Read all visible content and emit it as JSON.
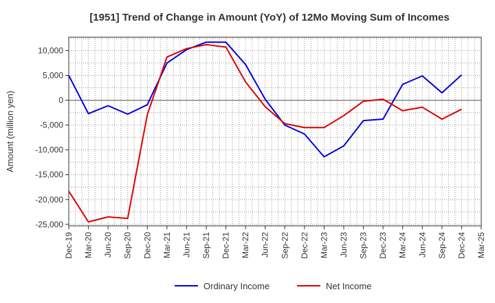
{
  "chart_data": {
    "type": "line",
    "title": "[1951]  Trend of Change in Amount (YoY) of 12Mo Moving Sum of Incomes",
    "xlabel": "",
    "ylabel": "Amount (million yen)",
    "categories": [
      "Dec-19",
      "Mar-20",
      "Jun-20",
      "Sep-20",
      "Dec-20",
      "Mar-21",
      "Jun-21",
      "Sep-21",
      "Dec-21",
      "Mar-22",
      "Jun-22",
      "Sep-22",
      "Dec-22",
      "Mar-23",
      "Jun-23",
      "Sep-23",
      "Dec-23",
      "Mar-24",
      "Jun-24",
      "Sep-24",
      "Dec-24",
      "Mar-25"
    ],
    "y_ticks": [
      10000,
      5000,
      0,
      -5000,
      -10000,
      -15000,
      -20000,
      -25000
    ],
    "y_tick_labels": [
      "10,000",
      "5,000",
      "0",
      "-5,000",
      "-10,000",
      "-15,000",
      "-20,000",
      "-25,000"
    ],
    "ylim": [
      -25300,
      12700
    ],
    "grid": true,
    "legend_position": "bottom",
    "series": [
      {
        "name": "Ordinary Income",
        "color": "#0000dd",
        "values": [
          5000,
          -2700,
          -1100,
          -2800,
          -900,
          7500,
          10200,
          11700,
          11700,
          7200,
          200,
          -5000,
          -6800,
          -11400,
          -9200,
          -4100,
          -3800,
          3200,
          4900,
          1500,
          5100,
          null
        ]
      },
      {
        "name": "Net Income",
        "color": "#dd0000",
        "values": [
          -18300,
          -24500,
          -23500,
          -23800,
          -2900,
          8700,
          10400,
          11200,
          10700,
          3700,
          -1300,
          -4700,
          -5500,
          -5500,
          -3100,
          -200,
          200,
          -2100,
          -1400,
          -3800,
          -1800,
          null
        ]
      }
    ]
  }
}
